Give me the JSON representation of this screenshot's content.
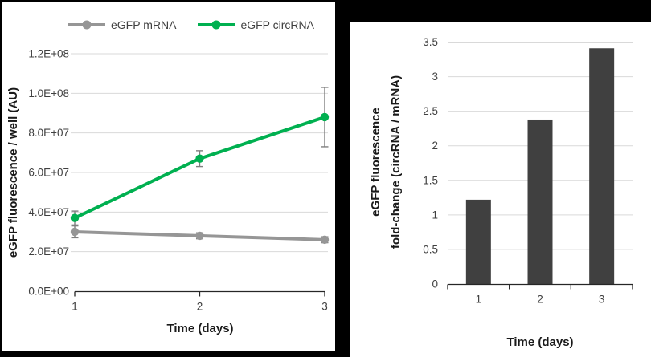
{
  "figure": {
    "background": "#000000",
    "panel_background": "#ffffff"
  },
  "chart_data": [
    {
      "type": "line",
      "x": [
        "1",
        "2",
        "3"
      ],
      "xlabel": "Time (days)",
      "ylabel": "eGFP fluorescence / well (AU)",
      "ylim": [
        0,
        120000000
      ],
      "ytick_step": 20000000,
      "ytick_labels": [
        "0.0E+00",
        "2.0E+07",
        "4.0E+07",
        "6.0E+07",
        "8.0E+07",
        "1.0E+08",
        "1.2E+08"
      ],
      "grid": true,
      "legend_position": "top",
      "series": [
        {
          "name": "eGFP mRNA",
          "color": "#969696",
          "values": [
            30000000,
            28000000,
            26000000
          ],
          "errors": [
            3000000,
            1500000,
            1500000
          ]
        },
        {
          "name": "eGFP circRNA",
          "color": "#00B050",
          "values": [
            37000000,
            67000000,
            88000000
          ],
          "errors": [
            3500000,
            4000000,
            15000000
          ]
        }
      ]
    },
    {
      "type": "bar",
      "categories": [
        "1",
        "2",
        "3"
      ],
      "values": [
        1.22,
        2.38,
        3.41
      ],
      "bar_color": "#404040",
      "xlabel": "Time (days)",
      "ylabel_line1": "eGFP fluorescence",
      "ylabel_line2": "fold-change (circRNA / mRNA)",
      "ylim": [
        0,
        3.5
      ],
      "ytick_step": 0.5,
      "ytick_labels": [
        "0",
        "0.5",
        "1",
        "1.5",
        "2",
        "2.5",
        "3",
        "3.5"
      ],
      "grid": true
    }
  ],
  "colors": {
    "gridline": "#d9d9d9",
    "axis": "#262626",
    "tick_text": "#404040",
    "error_bar": "#7f7f7f"
  }
}
